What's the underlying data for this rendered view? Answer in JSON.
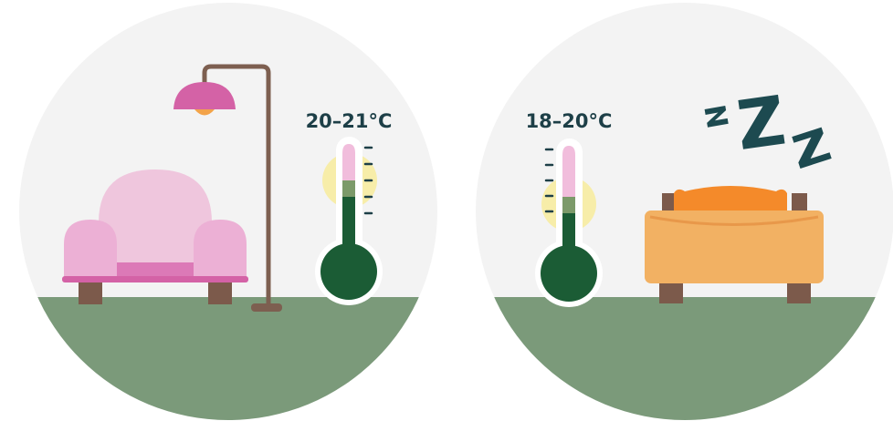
{
  "living_room": {
    "temperature_label": "20–21°C"
  },
  "bedroom": {
    "temperature_label": "18–20°C",
    "sleep_icon": "zzz-icon"
  },
  "colors": {
    "background_circle": "#f3f3f3",
    "floor": "#7b9a7a",
    "armchair": "#ecb0d5",
    "armchair_base": "#dc79b7",
    "lamp_shade": "#d462a6",
    "lamp_pole": "#7d5f50",
    "thermometer_fluid": "#1b5c35",
    "thermometer_top": "#f1bddc",
    "glow": "#f7eda9",
    "bed": "#f2b163",
    "pillow": "#f48a2a",
    "bed_frame": "#7c5a4b",
    "zzz": "#1d4a50"
  }
}
